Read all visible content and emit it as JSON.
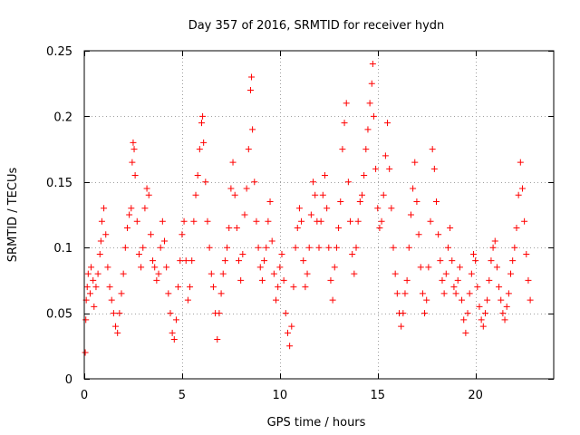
{
  "chart_data": {
    "type": "scatter",
    "title": "Day 357 of 2016, SRMTID for receiver hydn",
    "xlabel": "GPS time / hours",
    "ylabel": "SRMTID / TECUs",
    "xlim": [
      0,
      24
    ],
    "ylim": [
      0,
      0.25
    ],
    "x_ticks": [
      {
        "value": 0,
        "label": "0"
      },
      {
        "value": 5,
        "label": "5"
      },
      {
        "value": 10,
        "label": "10"
      },
      {
        "value": 15,
        "label": "15"
      },
      {
        "value": 20,
        "label": "20"
      }
    ],
    "y_ticks": [
      {
        "value": 0,
        "label": "0"
      },
      {
        "value": 0.05,
        "label": "0.05"
      },
      {
        "value": 0.1,
        "label": "0.1"
      },
      {
        "value": 0.15,
        "label": "0.15"
      },
      {
        "value": 0.2,
        "label": "0.2"
      },
      {
        "value": 0.25,
        "label": "0.25"
      }
    ],
    "grid": true,
    "marker": "+",
    "series": [
      {
        "name": "SRMTID",
        "color": "#ff0000",
        "points": [
          [
            0.05,
            0.02
          ],
          [
            0.08,
            0.045
          ],
          [
            0.1,
            0.06
          ],
          [
            0.15,
            0.07
          ],
          [
            0.2,
            0.08
          ],
          [
            0.3,
            0.065
          ],
          [
            0.35,
            0.085
          ],
          [
            0.45,
            0.075
          ],
          [
            0.5,
            0.055
          ],
          [
            0.6,
            0.07
          ],
          [
            0.7,
            0.08
          ],
          [
            0.8,
            0.095
          ],
          [
            0.85,
            0.105
          ],
          [
            0.9,
            0.12
          ],
          [
            1.0,
            0.13
          ],
          [
            1.1,
            0.11
          ],
          [
            1.2,
            0.085
          ],
          [
            1.3,
            0.07
          ],
          [
            1.4,
            0.06
          ],
          [
            1.5,
            0.05
          ],
          [
            1.6,
            0.04
          ],
          [
            1.7,
            0.035
          ],
          [
            1.8,
            0.05
          ],
          [
            1.9,
            0.065
          ],
          [
            2.0,
            0.08
          ],
          [
            2.1,
            0.1
          ],
          [
            2.2,
            0.115
          ],
          [
            2.3,
            0.125
          ],
          [
            2.4,
            0.13
          ],
          [
            2.45,
            0.165
          ],
          [
            2.5,
            0.18
          ],
          [
            2.55,
            0.175
          ],
          [
            2.6,
            0.155
          ],
          [
            2.7,
            0.12
          ],
          [
            2.8,
            0.095
          ],
          [
            2.9,
            0.085
          ],
          [
            3.0,
            0.1
          ],
          [
            3.1,
            0.13
          ],
          [
            3.2,
            0.145
          ],
          [
            3.3,
            0.14
          ],
          [
            3.4,
            0.11
          ],
          [
            3.5,
            0.09
          ],
          [
            3.6,
            0.085
          ],
          [
            3.7,
            0.075
          ],
          [
            3.8,
            0.08
          ],
          [
            3.9,
            0.1
          ],
          [
            4.0,
            0.12
          ],
          [
            4.1,
            0.105
          ],
          [
            4.2,
            0.085
          ],
          [
            4.3,
            0.065
          ],
          [
            4.4,
            0.05
          ],
          [
            4.5,
            0.035
          ],
          [
            4.6,
            0.03
          ],
          [
            4.7,
            0.045
          ],
          [
            4.8,
            0.07
          ],
          [
            4.9,
            0.09
          ],
          [
            5.0,
            0.11
          ],
          [
            5.1,
            0.12
          ],
          [
            5.2,
            0.09
          ],
          [
            5.3,
            0.06
          ],
          [
            5.4,
            0.07
          ],
          [
            5.5,
            0.09
          ],
          [
            5.6,
            0.12
          ],
          [
            5.7,
            0.14
          ],
          [
            5.8,
            0.155
          ],
          [
            5.9,
            0.175
          ],
          [
            6.0,
            0.195
          ],
          [
            6.05,
            0.2
          ],
          [
            6.1,
            0.18
          ],
          [
            6.2,
            0.15
          ],
          [
            6.3,
            0.12
          ],
          [
            6.4,
            0.1
          ],
          [
            6.5,
            0.08
          ],
          [
            6.6,
            0.07
          ],
          [
            6.7,
            0.05
          ],
          [
            6.8,
            0.03
          ],
          [
            6.9,
            0.05
          ],
          [
            7.0,
            0.065
          ],
          [
            7.1,
            0.08
          ],
          [
            7.2,
            0.09
          ],
          [
            7.3,
            0.1
          ],
          [
            7.4,
            0.115
          ],
          [
            7.5,
            0.145
          ],
          [
            7.6,
            0.165
          ],
          [
            7.7,
            0.14
          ],
          [
            7.8,
            0.115
          ],
          [
            7.9,
            0.09
          ],
          [
            8.0,
            0.075
          ],
          [
            8.1,
            0.095
          ],
          [
            8.2,
            0.125
          ],
          [
            8.3,
            0.145
          ],
          [
            8.4,
            0.175
          ],
          [
            8.5,
            0.22
          ],
          [
            8.55,
            0.23
          ],
          [
            8.6,
            0.19
          ],
          [
            8.7,
            0.15
          ],
          [
            8.8,
            0.12
          ],
          [
            8.9,
            0.1
          ],
          [
            9.0,
            0.085
          ],
          [
            9.1,
            0.075
          ],
          [
            9.2,
            0.09
          ],
          [
            9.3,
            0.1
          ],
          [
            9.4,
            0.12
          ],
          [
            9.5,
            0.135
          ],
          [
            9.6,
            0.105
          ],
          [
            9.7,
            0.08
          ],
          [
            9.8,
            0.06
          ],
          [
            9.9,
            0.07
          ],
          [
            10.0,
            0.085
          ],
          [
            10.1,
            0.095
          ],
          [
            10.2,
            0.075
          ],
          [
            10.3,
            0.05
          ],
          [
            10.4,
            0.035
          ],
          [
            10.5,
            0.025
          ],
          [
            10.6,
            0.04
          ],
          [
            10.7,
            0.07
          ],
          [
            10.8,
            0.1
          ],
          [
            10.9,
            0.115
          ],
          [
            11.0,
            0.13
          ],
          [
            11.1,
            0.12
          ],
          [
            11.2,
            0.09
          ],
          [
            11.3,
            0.07
          ],
          [
            11.4,
            0.08
          ],
          [
            11.5,
            0.1
          ],
          [
            11.6,
            0.125
          ],
          [
            11.7,
            0.15
          ],
          [
            11.8,
            0.14
          ],
          [
            11.9,
            0.12
          ],
          [
            12.0,
            0.1
          ],
          [
            12.1,
            0.12
          ],
          [
            12.2,
            0.14
          ],
          [
            12.3,
            0.155
          ],
          [
            12.4,
            0.13
          ],
          [
            12.5,
            0.1
          ],
          [
            12.6,
            0.075
          ],
          [
            12.7,
            0.06
          ],
          [
            12.8,
            0.085
          ],
          [
            12.9,
            0.1
          ],
          [
            13.0,
            0.115
          ],
          [
            13.1,
            0.135
          ],
          [
            13.2,
            0.175
          ],
          [
            13.3,
            0.195
          ],
          [
            13.4,
            0.21
          ],
          [
            13.5,
            0.15
          ],
          [
            13.6,
            0.12
          ],
          [
            13.7,
            0.095
          ],
          [
            13.8,
            0.08
          ],
          [
            13.9,
            0.1
          ],
          [
            14.0,
            0.12
          ],
          [
            14.1,
            0.135
          ],
          [
            14.2,
            0.14
          ],
          [
            14.3,
            0.155
          ],
          [
            14.4,
            0.175
          ],
          [
            14.5,
            0.19
          ],
          [
            14.6,
            0.21
          ],
          [
            14.7,
            0.225
          ],
          [
            14.75,
            0.24
          ],
          [
            14.8,
            0.2
          ],
          [
            14.9,
            0.16
          ],
          [
            15.0,
            0.13
          ],
          [
            15.1,
            0.115
          ],
          [
            15.2,
            0.12
          ],
          [
            15.3,
            0.14
          ],
          [
            15.4,
            0.17
          ],
          [
            15.5,
            0.195
          ],
          [
            15.6,
            0.16
          ],
          [
            15.7,
            0.13
          ],
          [
            15.8,
            0.1
          ],
          [
            15.9,
            0.08
          ],
          [
            16.0,
            0.065
          ],
          [
            16.1,
            0.05
          ],
          [
            16.2,
            0.04
          ],
          [
            16.3,
            0.05
          ],
          [
            16.4,
            0.065
          ],
          [
            16.5,
            0.075
          ],
          [
            16.6,
            0.1
          ],
          [
            16.7,
            0.125
          ],
          [
            16.8,
            0.145
          ],
          [
            16.9,
            0.165
          ],
          [
            17.0,
            0.135
          ],
          [
            17.1,
            0.11
          ],
          [
            17.2,
            0.085
          ],
          [
            17.3,
            0.065
          ],
          [
            17.4,
            0.05
          ],
          [
            17.5,
            0.06
          ],
          [
            17.6,
            0.085
          ],
          [
            17.7,
            0.12
          ],
          [
            17.8,
            0.175
          ],
          [
            17.9,
            0.16
          ],
          [
            18.0,
            0.135
          ],
          [
            18.1,
            0.11
          ],
          [
            18.2,
            0.09
          ],
          [
            18.3,
            0.075
          ],
          [
            18.4,
            0.065
          ],
          [
            18.5,
            0.08
          ],
          [
            18.6,
            0.1
          ],
          [
            18.7,
            0.115
          ],
          [
            18.8,
            0.09
          ],
          [
            18.9,
            0.07
          ],
          [
            19.0,
            0.065
          ],
          [
            19.1,
            0.075
          ],
          [
            19.2,
            0.085
          ],
          [
            19.3,
            0.06
          ],
          [
            19.4,
            0.045
          ],
          [
            19.5,
            0.035
          ],
          [
            19.6,
            0.05
          ],
          [
            19.7,
            0.065
          ],
          [
            19.8,
            0.08
          ],
          [
            19.9,
            0.095
          ],
          [
            20.0,
            0.09
          ],
          [
            20.1,
            0.07
          ],
          [
            20.2,
            0.055
          ],
          [
            20.3,
            0.045
          ],
          [
            20.4,
            0.04
          ],
          [
            20.5,
            0.05
          ],
          [
            20.6,
            0.06
          ],
          [
            20.7,
            0.075
          ],
          [
            20.8,
            0.09
          ],
          [
            20.9,
            0.1
          ],
          [
            21.0,
            0.105
          ],
          [
            21.1,
            0.085
          ],
          [
            21.2,
            0.07
          ],
          [
            21.3,
            0.06
          ],
          [
            21.4,
            0.05
          ],
          [
            21.5,
            0.045
          ],
          [
            21.6,
            0.055
          ],
          [
            21.7,
            0.065
          ],
          [
            21.8,
            0.08
          ],
          [
            21.9,
            0.09
          ],
          [
            22.0,
            0.1
          ],
          [
            22.1,
            0.115
          ],
          [
            22.2,
            0.14
          ],
          [
            22.3,
            0.165
          ],
          [
            22.4,
            0.145
          ],
          [
            22.5,
            0.12
          ],
          [
            22.6,
            0.095
          ],
          [
            22.7,
            0.075
          ],
          [
            22.8,
            0.06
          ]
        ]
      }
    ]
  }
}
